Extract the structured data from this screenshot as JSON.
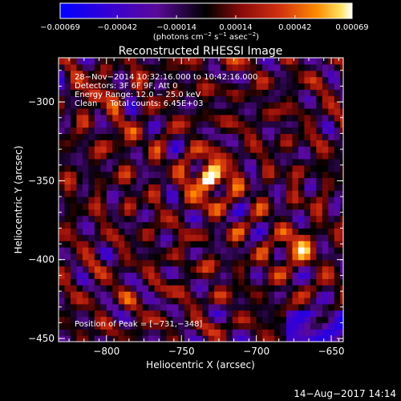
{
  "chart_data": {
    "type": "heatmap",
    "title": "Reconstructed RHESSI Image",
    "xlabel": "Heliocentric X (arcsec)",
    "ylabel": "Heliocentric Y (arcsec)",
    "xlim": [
      -832,
      -642
    ],
    "ylim": [
      -452,
      -272
    ],
    "x_ticks": [
      -800,
      -750,
      -700,
      -650
    ],
    "y_ticks": [
      -300,
      -350,
      -400,
      -450
    ],
    "x_tick_labels": [
      "−800",
      "−750",
      "−700",
      "−650"
    ],
    "y_tick_labels": [
      "−300",
      "−350",
      "−400",
      "−450"
    ],
    "colorbar": {
      "ticks": [
        -0.00069,
        -0.00042,
        -0.00014,
        0.00014,
        0.00042,
        0.00069
      ],
      "tick_labels": [
        "−0.00069",
        "−0.00042",
        "−0.00014",
        "0.00014",
        "0.00042",
        "0.00069"
      ],
      "range": [
        -0.00069,
        0.00069
      ],
      "unit_label": {
        "prefix": "(photons cm",
        "sup1": "−2",
        "mid1": " s",
        "sup2": "−1",
        "mid2": " asec",
        "sup3": "−2",
        "suffix": ")"
      }
    },
    "annotations": {
      "line1": "28−Nov−2014 10:32:16.000 to 10:42:16.000",
      "line2": "Detectors: 3F 6F 9F, Att 0",
      "line3": "Energy Range: 12.0 − 25.0 keV",
      "line4": "Clean     Total counts: 6.45E+03",
      "peak": "Position of Peak = [−731,−348]"
    },
    "peak": {
      "x": -731,
      "y": -348,
      "value": 0.00069
    },
    "secondary_sources": [
      {
        "x": -808,
        "y": -296,
        "value": 0.00038
      },
      {
        "x": -680,
        "y": -395,
        "value": 0.00032
      },
      {
        "x": -668,
        "y": -390,
        "value": 0.0003
      },
      {
        "x": -790,
        "y": -322,
        "value": 0.0002
      }
    ],
    "grid": false,
    "legend": "none"
  },
  "footer": {
    "timestamp": "14−Aug−2017 14:14"
  },
  "colors": {
    "background": "#000000",
    "text": "#ffffff",
    "colormap": [
      "#0000ff",
      "#4000c0",
      "#6a0a8a",
      "#000000",
      "#8a0a0a",
      "#d83010",
      "#ff8a00",
      "#ffd040",
      "#ffffff"
    ]
  }
}
